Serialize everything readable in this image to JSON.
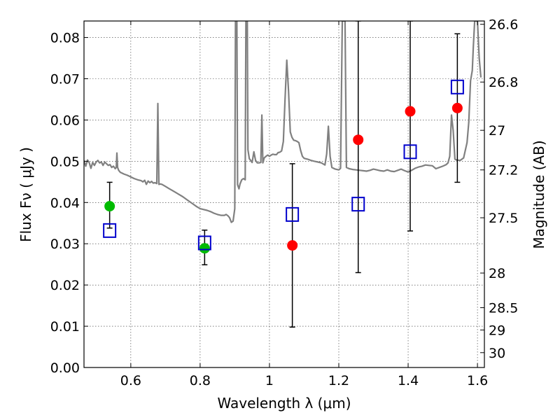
{
  "chart_data": {
    "type": "scatter",
    "xlabel": "Wavelength  λ (μm)",
    "ylabel": "Flux  Fν  ( μJy )",
    "ylabel_right": "Magnitude (AB)",
    "xlim": [
      0.465,
      1.62
    ],
    "ylim": [
      0.0,
      0.084
    ],
    "grid": true,
    "x_ticks": [
      0.6,
      0.8,
      1.0,
      1.2,
      1.4,
      1.6
    ],
    "x_tick_labels": [
      "0.6",
      "0.8",
      "1",
      "1.2",
      "1.4",
      "1.6"
    ],
    "y_ticks": [
      0.0,
      0.01,
      0.02,
      0.03,
      0.04,
      0.05,
      0.06,
      0.07,
      0.08
    ],
    "y_tick_labels": [
      "0.00",
      "0.01",
      "0.02",
      "0.03",
      "0.04",
      "0.05",
      "0.06",
      "0.07",
      "0.08"
    ],
    "right_axis_ticks": [
      {
        "label": "26.6",
        "flux": 0.0832
      },
      {
        "label": "26.8",
        "flux": 0.0692
      },
      {
        "label": "27",
        "flux": 0.0575
      },
      {
        "label": "27.2",
        "flux": 0.0479
      },
      {
        "label": "27.5",
        "flux": 0.0363
      },
      {
        "label": "28",
        "flux": 0.0229
      },
      {
        "label": "28.5",
        "flux": 0.0145
      },
      {
        "label": "29",
        "flux": 0.0091
      },
      {
        "label": "30",
        "flux": 0.0036
      }
    ],
    "series": [
      {
        "name": "model spectrum",
        "kind": "line",
        "color": "#808080",
        "points": [
          [
            0.465,
            0.0502
          ],
          [
            0.47,
            0.0488
          ],
          [
            0.475,
            0.0503
          ],
          [
            0.48,
            0.0497
          ],
          [
            0.485,
            0.0483
          ],
          [
            0.49,
            0.0497
          ],
          [
            0.495,
            0.049
          ],
          [
            0.5,
            0.0498
          ],
          [
            0.505,
            0.0502
          ],
          [
            0.51,
            0.0496
          ],
          [
            0.515,
            0.0498
          ],
          [
            0.52,
            0.049
          ],
          [
            0.525,
            0.0498
          ],
          [
            0.53,
            0.0494
          ],
          [
            0.535,
            0.049
          ],
          [
            0.54,
            0.0492
          ],
          [
            0.545,
            0.0485
          ],
          [
            0.55,
            0.0488
          ],
          [
            0.555,
            0.0482
          ],
          [
            0.558,
            0.0485
          ],
          [
            0.56,
            0.052
          ],
          [
            0.562,
            0.0485
          ],
          [
            0.565,
            0.0478
          ],
          [
            0.57,
            0.0473
          ],
          [
            0.575,
            0.0471
          ],
          [
            0.58,
            0.0469
          ],
          [
            0.59,
            0.0466
          ],
          [
            0.6,
            0.0462
          ],
          [
            0.61,
            0.0458
          ],
          [
            0.62,
            0.0455
          ],
          [
            0.63,
            0.0453
          ],
          [
            0.635,
            0.045
          ],
          [
            0.64,
            0.0454
          ],
          [
            0.645,
            0.0444
          ],
          [
            0.65,
            0.0452
          ],
          [
            0.655,
            0.0448
          ],
          [
            0.66,
            0.0451
          ],
          [
            0.665,
            0.0447
          ],
          [
            0.67,
            0.0448
          ],
          [
            0.675,
            0.0446
          ],
          [
            0.678,
            0.064
          ],
          [
            0.681,
            0.0444
          ],
          [
            0.685,
            0.0445
          ],
          [
            0.69,
            0.0444
          ],
          [
            0.7,
            0.0439
          ],
          [
            0.71,
            0.0434
          ],
          [
            0.72,
            0.0429
          ],
          [
            0.73,
            0.0424
          ],
          [
            0.74,
            0.0419
          ],
          [
            0.75,
            0.0414
          ],
          [
            0.76,
            0.0408
          ],
          [
            0.77,
            0.0402
          ],
          [
            0.78,
            0.0396
          ],
          [
            0.79,
            0.039
          ],
          [
            0.8,
            0.0385
          ],
          [
            0.81,
            0.0383
          ],
          [
            0.82,
            0.0381
          ],
          [
            0.83,
            0.0378
          ],
          [
            0.84,
            0.0374
          ],
          [
            0.85,
            0.0371
          ],
          [
            0.86,
            0.0369
          ],
          [
            0.87,
            0.0369
          ],
          [
            0.875,
            0.0371
          ],
          [
            0.88,
            0.0368
          ],
          [
            0.885,
            0.0363
          ],
          [
            0.89,
            0.0352
          ],
          [
            0.895,
            0.0355
          ],
          [
            0.9,
            0.0385
          ],
          [
            0.902,
            0.084
          ],
          [
            0.906,
            0.084
          ],
          [
            0.908,
            0.0443
          ],
          [
            0.912,
            0.0433
          ],
          [
            0.915,
            0.0445
          ],
          [
            0.92,
            0.0455
          ],
          [
            0.925,
            0.0458
          ],
          [
            0.93,
            0.0455
          ],
          [
            0.932,
            0.084
          ],
          [
            0.936,
            0.084
          ],
          [
            0.938,
            0.0528
          ],
          [
            0.942,
            0.0506
          ],
          [
            0.946,
            0.0502
          ],
          [
            0.95,
            0.0497
          ],
          [
            0.955,
            0.0523
          ],
          [
            0.96,
            0.0502
          ],
          [
            0.965,
            0.0496
          ],
          [
            0.97,
            0.0496
          ],
          [
            0.975,
            0.0497
          ],
          [
            0.978,
            0.0612
          ],
          [
            0.981,
            0.0496
          ],
          [
            0.985,
            0.0508
          ],
          [
            0.99,
            0.0512
          ],
          [
            0.995,
            0.0515
          ],
          [
            1.0,
            0.0512
          ],
          [
            1.005,
            0.0515
          ],
          [
            1.01,
            0.0517
          ],
          [
            1.015,
            0.0516
          ],
          [
            1.02,
            0.0516
          ],
          [
            1.025,
            0.0521
          ],
          [
            1.03,
            0.0522
          ],
          [
            1.035,
            0.0525
          ],
          [
            1.04,
            0.0548
          ],
          [
            1.045,
            0.065
          ],
          [
            1.05,
            0.0745
          ],
          [
            1.055,
            0.067
          ],
          [
            1.06,
            0.0571
          ],
          [
            1.065,
            0.0558
          ],
          [
            1.07,
            0.0551
          ],
          [
            1.075,
            0.055
          ],
          [
            1.08,
            0.0548
          ],
          [
            1.085,
            0.0545
          ],
          [
            1.09,
            0.0526
          ],
          [
            1.095,
            0.0512
          ],
          [
            1.1,
            0.0507
          ],
          [
            1.11,
            0.0505
          ],
          [
            1.12,
            0.0502
          ],
          [
            1.13,
            0.05
          ],
          [
            1.14,
            0.0498
          ],
          [
            1.15,
            0.0496
          ],
          [
            1.16,
            0.0491
          ],
          [
            1.165,
            0.0518
          ],
          [
            1.17,
            0.0585
          ],
          [
            1.175,
            0.0512
          ],
          [
            1.18,
            0.0485
          ],
          [
            1.19,
            0.0481
          ],
          [
            1.2,
            0.0479
          ],
          [
            1.205,
            0.0483
          ],
          [
            1.21,
            0.084
          ],
          [
            1.218,
            0.084
          ],
          [
            1.222,
            0.0485
          ],
          [
            1.23,
            0.0482
          ],
          [
            1.24,
            0.048
          ],
          [
            1.25,
            0.0479
          ],
          [
            1.26,
            0.0478
          ],
          [
            1.27,
            0.0477
          ],
          [
            1.28,
            0.0476
          ],
          [
            1.29,
            0.0478
          ],
          [
            1.3,
            0.0481
          ],
          [
            1.31,
            0.0479
          ],
          [
            1.32,
            0.0477
          ],
          [
            1.33,
            0.0476
          ],
          [
            1.34,
            0.0479
          ],
          [
            1.35,
            0.0476
          ],
          [
            1.36,
            0.0475
          ],
          [
            1.37,
            0.0478
          ],
          [
            1.38,
            0.0481
          ],
          [
            1.39,
            0.0477
          ],
          [
            1.4,
            0.0474
          ],
          [
            1.41,
            0.0478
          ],
          [
            1.42,
            0.0483
          ],
          [
            1.43,
            0.0486
          ],
          [
            1.44,
            0.0488
          ],
          [
            1.45,
            0.0491
          ],
          [
            1.46,
            0.049
          ],
          [
            1.47,
            0.0489
          ],
          [
            1.48,
            0.0482
          ],
          [
            1.49,
            0.0485
          ],
          [
            1.5,
            0.0488
          ],
          [
            1.51,
            0.0492
          ],
          [
            1.515,
            0.0496
          ],
          [
            1.52,
            0.0512
          ],
          [
            1.525,
            0.0612
          ],
          [
            1.53,
            0.0575
          ],
          [
            1.535,
            0.0505
          ],
          [
            1.54,
            0.0503
          ],
          [
            1.55,
            0.0502
          ],
          [
            1.56,
            0.0508
          ],
          [
            1.57,
            0.0545
          ],
          [
            1.575,
            0.0595
          ],
          [
            1.58,
            0.0695
          ],
          [
            1.585,
            0.072
          ],
          [
            1.588,
            0.0778
          ],
          [
            1.592,
            0.084
          ],
          [
            1.6,
            0.084
          ],
          [
            1.605,
            0.075
          ],
          [
            1.61,
            0.0703
          ]
        ]
      },
      {
        "name": "green points",
        "kind": "marker",
        "marker": "circle",
        "color": "#00bb00",
        "x": [
          0.539,
          0.813
        ],
        "y": [
          0.0391,
          0.0289
        ]
      },
      {
        "name": "red points",
        "kind": "marker",
        "marker": "circle",
        "color": "#ff0000",
        "x": [
          1.066,
          1.256,
          1.406,
          1.542
        ],
        "y": [
          0.0296,
          0.0552,
          0.0621,
          0.0629
        ]
      },
      {
        "name": "blue squares with error bars",
        "kind": "marker",
        "marker": "square",
        "color": "#0000cc",
        "x": [
          0.539,
          0.813,
          1.066,
          1.256,
          1.406,
          1.542
        ],
        "y": [
          0.0332,
          0.0302,
          0.0371,
          0.0396,
          0.0523,
          0.068
        ],
        "y_err_low": [
          0.0338,
          0.0249,
          0.0098,
          0.023,
          0.0331,
          0.0449
        ],
        "y_err_high": [
          0.0449,
          0.0333,
          0.0494,
          0.084,
          0.084,
          0.0809
        ]
      }
    ]
  }
}
